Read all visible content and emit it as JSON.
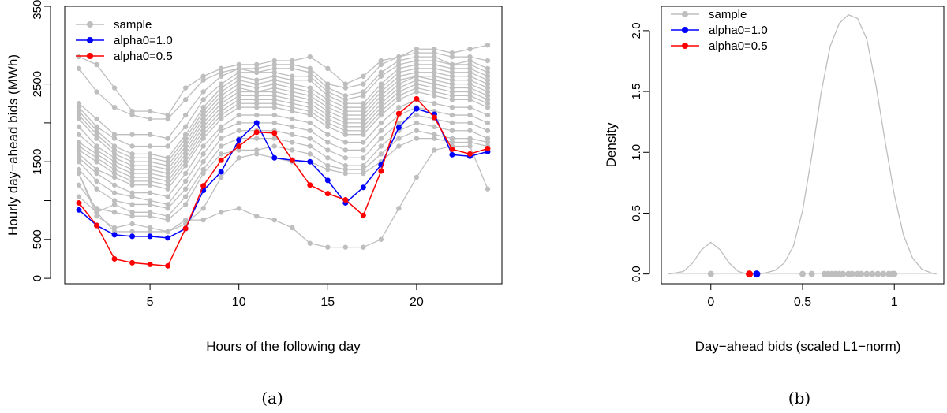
{
  "colors": {
    "sample": "#bebebe",
    "alpha1": "#0000ff",
    "alpha05": "#ff0000",
    "axis": "#000000"
  },
  "chart_data": [
    {
      "type": "line",
      "caption": "(a)",
      "xlabel": "Hours of the following day",
      "ylabel": "Hourly day−ahead bids (MWh)",
      "xlim": [
        0.2,
        24.8
      ],
      "ylim": [
        -70,
        3500
      ],
      "xticks": [
        5,
        10,
        15,
        20
      ],
      "xtick_labels": [
        "5",
        "10",
        "15",
        "20"
      ],
      "yticks": [
        0,
        500,
        1000,
        1500,
        2000,
        2500,
        3500
      ],
      "ytick_labels": [
        "0",
        "500",
        "1500",
        "2500",
        "3500"
      ],
      "ytick_labeled": [
        0,
        500,
        1500,
        2500,
        3500
      ],
      "legend": {
        "position": "top-left",
        "entries": [
          "sample",
          "alpha0=1.0",
          "alpha0=0.5"
        ]
      },
      "x": [
        1,
        2,
        3,
        4,
        5,
        6,
        7,
        8,
        9,
        10,
        11,
        12,
        13,
        14,
        15,
        16,
        17,
        18,
        19,
        20,
        21,
        22,
        23,
        24
      ],
      "sample_series": [
        [
          2850,
          2750,
          2450,
          2150,
          2150,
          2100,
          2450,
          2600,
          2700,
          2750,
          2750,
          2800,
          2800,
          2850,
          2700,
          2500,
          2600,
          2800,
          2850,
          2950,
          2950,
          2900,
          2950,
          3000
        ],
        [
          2700,
          2400,
          2200,
          2100,
          2050,
          2050,
          2300,
          2550,
          2650,
          2700,
          2700,
          2750,
          2750,
          2700,
          2500,
          2450,
          2500,
          2750,
          2850,
          2900,
          2900,
          2850,
          2850,
          2800
        ],
        [
          2250,
          2050,
          1850,
          1850,
          1850,
          1800,
          2100,
          2400,
          2600,
          2700,
          2650,
          2700,
          2700,
          2650,
          2450,
          2350,
          2400,
          2650,
          2800,
          2850,
          2850,
          2750,
          2800,
          2700
        ],
        [
          2200,
          1950,
          1800,
          1700,
          1700,
          1700,
          1950,
          2300,
          2500,
          2650,
          2650,
          2650,
          2600,
          2600,
          2400,
          2300,
          2350,
          2600,
          2750,
          2800,
          2800,
          2750,
          2750,
          2650
        ],
        [
          2150,
          1900,
          1700,
          1600,
          1600,
          1550,
          1850,
          2200,
          2450,
          2600,
          2550,
          2600,
          2550,
          2550,
          2350,
          2250,
          2250,
          2500,
          2700,
          2750,
          2750,
          2700,
          2700,
          2600
        ],
        [
          2100,
          1850,
          1650,
          1550,
          1550,
          1500,
          1800,
          2150,
          2400,
          2550,
          2500,
          2550,
          2500,
          2450,
          2300,
          2200,
          2200,
          2450,
          2650,
          2700,
          2700,
          2650,
          2650,
          2550
        ],
        [
          2050,
          1800,
          1600,
          1500,
          1500,
          1450,
          1750,
          2100,
          2350,
          2500,
          2450,
          2500,
          2450,
          2400,
          2250,
          2150,
          2150,
          2400,
          2600,
          2650,
          2650,
          2600,
          2600,
          2500
        ],
        [
          1950,
          1700,
          1550,
          1450,
          1450,
          1400,
          1700,
          2050,
          2300,
          2450,
          2400,
          2450,
          2400,
          2350,
          2200,
          2100,
          2100,
          2350,
          2550,
          2600,
          2600,
          2550,
          2550,
          2450
        ],
        [
          1850,
          1650,
          1500,
          1400,
          1400,
          1350,
          1650,
          2000,
          2250,
          2400,
          2400,
          2400,
          2350,
          2300,
          2150,
          2050,
          2050,
          2300,
          2500,
          2600,
          2550,
          2500,
          2500,
          2400
        ],
        [
          1750,
          1600,
          1450,
          1350,
          1350,
          1300,
          1600,
          1950,
          2200,
          2350,
          2350,
          2350,
          2300,
          2250,
          2100,
          2000,
          2000,
          2250,
          2450,
          2550,
          2500,
          2450,
          2450,
          2350
        ],
        [
          1700,
          1550,
          1400,
          1300,
          1300,
          1250,
          1550,
          1900,
          2150,
          2300,
          2300,
          2300,
          2250,
          2200,
          2050,
          1950,
          1950,
          2200,
          2400,
          2500,
          2450,
          2400,
          2400,
          2300
        ],
        [
          1650,
          1500,
          1350,
          1250,
          1250,
          1200,
          1500,
          1850,
          2100,
          2250,
          2250,
          2250,
          2200,
          2150,
          2000,
          1900,
          1900,
          2150,
          2350,
          2450,
          2400,
          2350,
          2350,
          2250
        ],
        [
          1600,
          1400,
          1300,
          1200,
          1200,
          1150,
          1450,
          1800,
          2050,
          2200,
          2200,
          2200,
          2150,
          2100,
          1950,
          1850,
          1850,
          2100,
          2300,
          2400,
          2350,
          2300,
          2300,
          2200
        ],
        [
          1550,
          1350,
          1200,
          1100,
          1100,
          1050,
          1350,
          1700,
          1950,
          2100,
          2100,
          2100,
          2050,
          2000,
          1850,
          1750,
          1750,
          2000,
          2200,
          2300,
          2250,
          2200,
          2200,
          2100
        ],
        [
          1500,
          1250,
          1100,
          1050,
          1000,
          950,
          1250,
          1600,
          1900,
          2000,
          2000,
          2000,
          1950,
          1900,
          1750,
          1650,
          1650,
          1900,
          2100,
          2200,
          2150,
          2100,
          2100,
          2000
        ],
        [
          1400,
          1150,
          1000,
          950,
          950,
          900,
          1150,
          1500,
          1800,
          1900,
          1900,
          1900,
          1850,
          1800,
          1650,
          1550,
          1550,
          1800,
          2000,
          2100,
          2050,
          2000,
          2000,
          1900
        ],
        [
          1350,
          850,
          950,
          850,
          850,
          800,
          1050,
          1400,
          1700,
          1800,
          1800,
          1800,
          1750,
          1700,
          1550,
          1450,
          1450,
          1700,
          1900,
          2000,
          1950,
          1900,
          1900,
          1800
        ],
        [
          1200,
          900,
          850,
          800,
          800,
          750,
          950,
          1350,
          1600,
          1650,
          1650,
          1700,
          1650,
          1600,
          1450,
          1400,
          1400,
          1600,
          1800,
          1900,
          1850,
          1800,
          1800,
          1750
        ],
        [
          1350,
          800,
          650,
          700,
          650,
          600,
          700,
          900,
          1300,
          1550,
          1600,
          1550,
          1500,
          1500,
          1400,
          1350,
          1350,
          1500,
          1700,
          1800,
          1800,
          1750,
          1750,
          1700
        ],
        [
          1050,
          850,
          600,
          600,
          600,
          600,
          750,
          750,
          850,
          900,
          800,
          750,
          650,
          450,
          400,
          400,
          400,
          500,
          900,
          1300,
          1650,
          1700,
          1700,
          1150
        ]
      ],
      "series": [
        {
          "name": "alpha0=1.0",
          "values": [
            880,
            680,
            560,
            540,
            540,
            520,
            640,
            1130,
            1370,
            1780,
            2000,
            1550,
            1520,
            1500,
            1260,
            970,
            1170,
            1460,
            1940,
            2180,
            2110,
            1590,
            1570,
            1630
          ]
        },
        {
          "name": "alpha0=0.5",
          "values": [
            970,
            680,
            250,
            200,
            180,
            160,
            640,
            1190,
            1520,
            1700,
            1880,
            1870,
            1520,
            1200,
            1090,
            1010,
            810,
            1380,
            2120,
            2310,
            2070,
            1660,
            1600,
            1670
          ]
        }
      ]
    },
    {
      "type": "line",
      "caption": "(b)",
      "xlabel": "Day−ahead bids (scaled L1−norm)",
      "ylabel": "Density",
      "xlim": [
        -0.27,
        1.27
      ],
      "ylim": [
        -0.08,
        2.2
      ],
      "xticks": [
        0,
        0.5,
        1
      ],
      "xtick_labels": [
        "0",
        "0.5",
        "1"
      ],
      "yticks": [
        0.0,
        0.5,
        1.0,
        1.5,
        2.0
      ],
      "ytick_labels": [
        "0.0",
        "0.5",
        "1.0",
        "1.5",
        "2.0"
      ],
      "legend": {
        "position": "top-left",
        "entries": [
          "sample",
          "alpha0=1.0",
          "alpha0=0.5"
        ]
      },
      "density_curve": {
        "x": [
          -0.23,
          -0.15,
          -0.1,
          -0.05,
          0,
          0.05,
          0.1,
          0.15,
          0.2,
          0.25,
          0.3,
          0.35,
          0.4,
          0.45,
          0.5,
          0.55,
          0.6,
          0.65,
          0.7,
          0.75,
          0.8,
          0.85,
          0.9,
          0.95,
          1.0,
          1.05,
          1.1,
          1.15,
          1.2,
          1.23
        ],
        "y": [
          0.0,
          0.02,
          0.09,
          0.2,
          0.26,
          0.2,
          0.09,
          0.02,
          0.0,
          0.0,
          0.01,
          0.03,
          0.09,
          0.23,
          0.52,
          0.97,
          1.48,
          1.87,
          2.06,
          2.13,
          2.1,
          1.93,
          1.55,
          1.09,
          0.65,
          0.32,
          0.13,
          0.04,
          0.01,
          0.0
        ]
      },
      "sample_points": [
        0,
        0.5,
        0.55,
        0.62,
        0.64,
        0.66,
        0.68,
        0.7,
        0.72,
        0.75,
        0.77,
        0.8,
        0.82,
        0.85,
        0.88,
        0.91,
        0.94,
        0.97,
        0.99,
        1.0
      ],
      "points": [
        {
          "name": "alpha0=1.0",
          "x": 0.25,
          "y": 0
        },
        {
          "name": "alpha0=0.5",
          "x": 0.21,
          "y": 0
        }
      ]
    }
  ]
}
